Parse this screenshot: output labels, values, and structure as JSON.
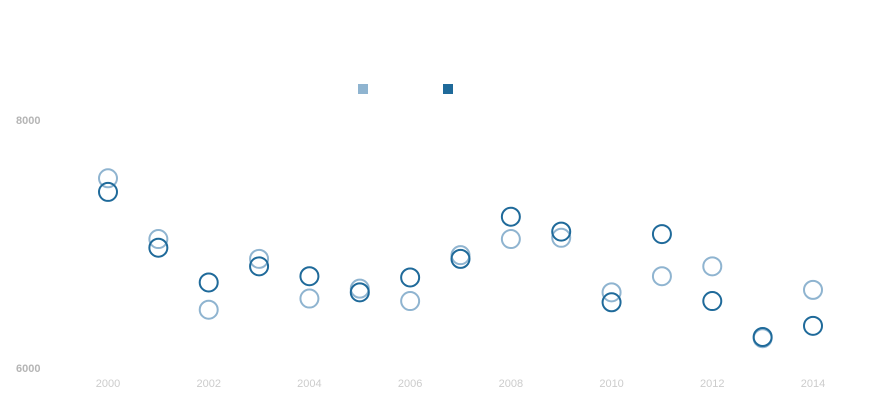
{
  "chart_data": {
    "type": "scatter",
    "title": "",
    "xlabel": "",
    "ylabel": "",
    "xlim": [
      2000,
      2014
    ],
    "ylim": [
      6000,
      8000
    ],
    "x_ticks": [
      "2000",
      "2002",
      "2004",
      "2006",
      "2008",
      "2010",
      "2012",
      "2014"
    ],
    "y_ticks": [
      "6000",
      "8000"
    ],
    "grid": false,
    "legend": "top-center",
    "x": [
      2000,
      2001,
      2002,
      2003,
      2004,
      2005,
      2006,
      2007,
      2008,
      2009,
      2010,
      2011,
      2012,
      2013,
      2014
    ],
    "series": [
      {
        "color": "#8fb4d0",
        "values": [
          7530,
          7040,
          6470,
          6880,
          6560,
          6640,
          6540,
          6910,
          7040,
          7050,
          6610,
          6740,
          6820,
          6240,
          6630
        ]
      },
      {
        "color": "#1f6a9a",
        "values": [
          7420,
          6970,
          6690,
          6820,
          6740,
          6610,
          6730,
          6880,
          7220,
          7100,
          6530,
          7080,
          6540,
          6250,
          6340
        ]
      }
    ]
  }
}
